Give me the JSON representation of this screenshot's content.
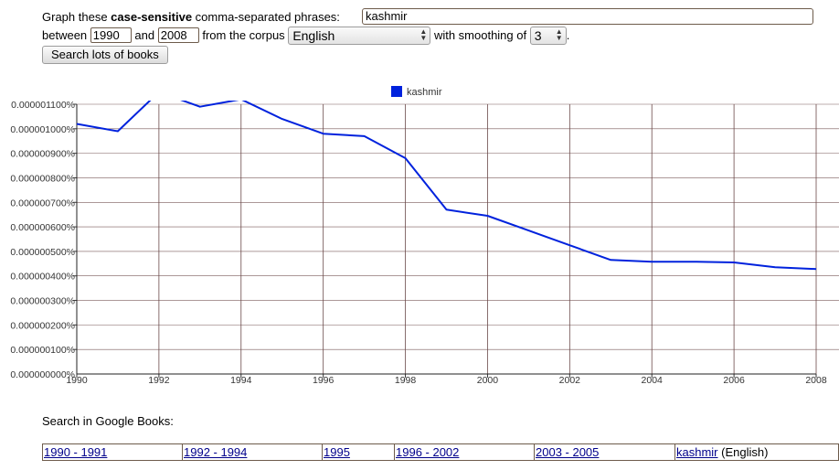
{
  "form": {
    "prefix": "Graph these ",
    "bold": "case-sensitive",
    "suffix": " comma-separated phrases:",
    "phrase_value": "kashmir",
    "between_label": "between",
    "start_year": "1990",
    "and_label": "and",
    "end_year": "2008",
    "corpus_label": "from the corpus",
    "corpus_value": "English",
    "smoothing_label": "with smoothing of",
    "smoothing_value": "3",
    "period": ".",
    "search_button": "Search lots of books"
  },
  "legend": {
    "label": "kashmir",
    "color": "#0022dd"
  },
  "chart_data": {
    "type": "line",
    "title": "",
    "xlabel": "",
    "ylabel": "",
    "xlim": [
      1990,
      2008
    ],
    "ylim": [
      0,
      1.1e-06
    ],
    "grid": true,
    "y_ticks": [
      "0.000000000%",
      "0.000000100%",
      "0.000000200%",
      "0.000000300%",
      "0.000000400%",
      "0.000000500%",
      "0.000000600%",
      "0.000000700%",
      "0.000000800%",
      "0.000000900%",
      "0.000001000%",
      "0.000001100%"
    ],
    "x_ticks": [
      "1990",
      "1992",
      "1994",
      "1996",
      "1998",
      "2000",
      "2002",
      "2004",
      "2006",
      "2008"
    ],
    "series": [
      {
        "name": "kashmir",
        "color": "#0022dd",
        "x": [
          1990,
          1991,
          1992,
          1993,
          1994,
          1995,
          1996,
          1997,
          1998,
          1999,
          2000,
          2001,
          2002,
          2003,
          2004,
          2005,
          2006,
          2007,
          2008
        ],
        "y": [
          1.02e-06,
          9.9e-07,
          1.15e-06,
          1.09e-06,
          1.12e-06,
          1.04e-06,
          9.8e-07,
          9.7e-07,
          8.8e-07,
          6.7e-07,
          6.45e-07,
          5.85e-07,
          5.25e-07,
          4.65e-07,
          4.58e-07,
          4.58e-07,
          4.55e-07,
          4.35e-07,
          4.28e-07
        ]
      }
    ]
  },
  "google_books": {
    "label": "Search in Google Books:",
    "links": [
      "1990 - 1991",
      "1992 - 1994",
      "1995",
      "1996 - 2002",
      "2003 - 2005"
    ],
    "phrase_link": "kashmir",
    "phrase_suffix": " (English)"
  }
}
